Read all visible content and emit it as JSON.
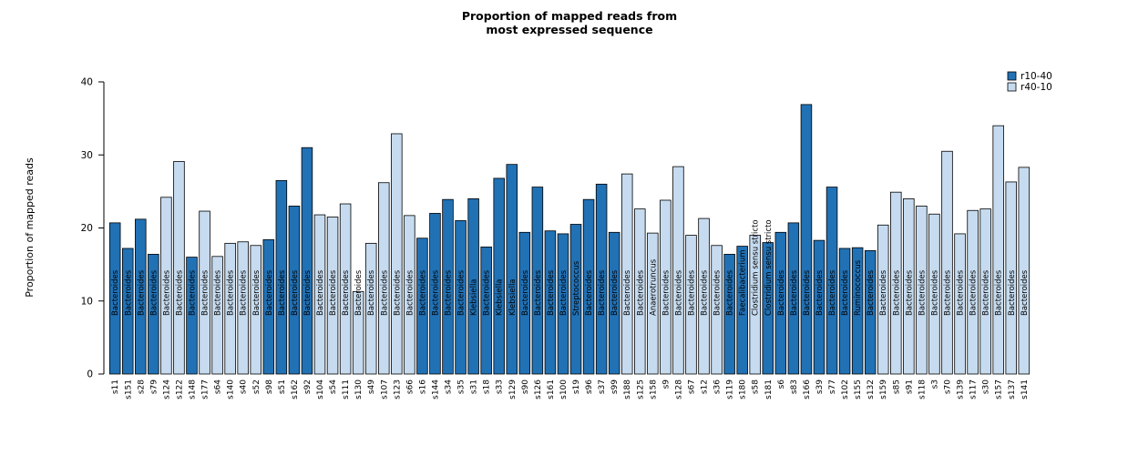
{
  "chart_data": {
    "type": "bar",
    "title_line1": "Proportion of mapped reads from",
    "title_line2": "most expressed sequence",
    "ylabel": "Proportion of mapped reads",
    "xlabel": "",
    "ylim": [
      0,
      40
    ],
    "yticks": [
      0,
      10,
      20,
      30,
      40
    ],
    "grid": false,
    "legend_position": "top-right",
    "bar_outline_color": "#000000",
    "legend": [
      {
        "label": "r10-40",
        "color": "#2171b5"
      },
      {
        "label": "r40-10",
        "color": "#c6dbef"
      }
    ],
    "bars": [
      {
        "sample": "s11",
        "value": 20.7,
        "group": "r10-40",
        "taxon": "Bacteroides"
      },
      {
        "sample": "s151",
        "value": 17.2,
        "group": "r10-40",
        "taxon": "Bacteroides"
      },
      {
        "sample": "s28",
        "value": 21.2,
        "group": "r10-40",
        "taxon": "Bacteroides"
      },
      {
        "sample": "s79",
        "value": 16.4,
        "group": "r10-40",
        "taxon": "Bacteroides"
      },
      {
        "sample": "s124",
        "value": 24.2,
        "group": "r40-10",
        "taxon": "Bacteroides"
      },
      {
        "sample": "s122",
        "value": 29.1,
        "group": "r40-10",
        "taxon": "Bacteroides"
      },
      {
        "sample": "s148",
        "value": 16.0,
        "group": "r10-40",
        "taxon": "Bacteroides"
      },
      {
        "sample": "s177",
        "value": 22.3,
        "group": "r40-10",
        "taxon": "Bacteroides"
      },
      {
        "sample": "s64",
        "value": 16.1,
        "group": "r40-10",
        "taxon": "Bacteroides"
      },
      {
        "sample": "s140",
        "value": 17.9,
        "group": "r40-10",
        "taxon": "Bacteroides"
      },
      {
        "sample": "s40",
        "value": 18.1,
        "group": "r40-10",
        "taxon": "Bacteroides"
      },
      {
        "sample": "s52",
        "value": 17.6,
        "group": "r40-10",
        "taxon": "Bacteroides"
      },
      {
        "sample": "s98",
        "value": 18.4,
        "group": "r10-40",
        "taxon": "Bacteroides"
      },
      {
        "sample": "s51",
        "value": 26.5,
        "group": "r10-40",
        "taxon": "Bacteroides"
      },
      {
        "sample": "s162",
        "value": 23.0,
        "group": "r10-40",
        "taxon": "Bacteroides"
      },
      {
        "sample": "s92",
        "value": 31.0,
        "group": "r10-40",
        "taxon": "Bacteroides"
      },
      {
        "sample": "s104",
        "value": 21.8,
        "group": "r40-10",
        "taxon": "Bacteroides"
      },
      {
        "sample": "s54",
        "value": 21.5,
        "group": "r40-10",
        "taxon": "Bacteroides"
      },
      {
        "sample": "s111",
        "value": 23.3,
        "group": "r40-10",
        "taxon": "Bacteroides"
      },
      {
        "sample": "s130",
        "value": 11.3,
        "group": "r40-10",
        "taxon": "Bacteroides"
      },
      {
        "sample": "s49",
        "value": 17.9,
        "group": "r40-10",
        "taxon": "Bacteroides"
      },
      {
        "sample": "s107",
        "value": 26.2,
        "group": "r40-10",
        "taxon": "Bacteroides"
      },
      {
        "sample": "s123",
        "value": 32.9,
        "group": "r40-10",
        "taxon": "Bacteroides"
      },
      {
        "sample": "s66",
        "value": 21.7,
        "group": "r40-10",
        "taxon": "Bacteroides"
      },
      {
        "sample": "s16",
        "value": 18.6,
        "group": "r10-40",
        "taxon": "Bacteroides"
      },
      {
        "sample": "s144",
        "value": 22.0,
        "group": "r10-40",
        "taxon": "Bacteroides"
      },
      {
        "sample": "s34",
        "value": 23.9,
        "group": "r10-40",
        "taxon": "Bacteroides"
      },
      {
        "sample": "s35",
        "value": 21.0,
        "group": "r10-40",
        "taxon": "Bacteroides"
      },
      {
        "sample": "s31",
        "value": 24.0,
        "group": "r10-40",
        "taxon": "Klebsiella"
      },
      {
        "sample": "s18",
        "value": 17.4,
        "group": "r10-40",
        "taxon": "Bacteroides"
      },
      {
        "sample": "s33",
        "value": 26.8,
        "group": "r10-40",
        "taxon": "Klebsiella"
      },
      {
        "sample": "s129",
        "value": 28.7,
        "group": "r10-40",
        "taxon": "Klebsiella"
      },
      {
        "sample": "s90",
        "value": 19.4,
        "group": "r10-40",
        "taxon": "Bacteroides"
      },
      {
        "sample": "s126",
        "value": 25.6,
        "group": "r10-40",
        "taxon": "Bacteroides"
      },
      {
        "sample": "s161",
        "value": 19.6,
        "group": "r10-40",
        "taxon": "Bacteroides"
      },
      {
        "sample": "s100",
        "value": 19.2,
        "group": "r10-40",
        "taxon": "Bacteroides"
      },
      {
        "sample": "s19",
        "value": 20.5,
        "group": "r10-40",
        "taxon": "Streptococcus"
      },
      {
        "sample": "s96",
        "value": 23.9,
        "group": "r10-40",
        "taxon": "Bacteroides"
      },
      {
        "sample": "s37",
        "value": 26.0,
        "group": "r10-40",
        "taxon": "Bacteroides"
      },
      {
        "sample": "s99",
        "value": 19.4,
        "group": "r10-40",
        "taxon": "Bacteroides"
      },
      {
        "sample": "s188",
        "value": 27.4,
        "group": "r40-10",
        "taxon": "Bacteroides"
      },
      {
        "sample": "s125",
        "value": 22.6,
        "group": "r40-10",
        "taxon": "Bacteroides"
      },
      {
        "sample": "s158",
        "value": 19.3,
        "group": "r40-10",
        "taxon": "Anaerotruncus"
      },
      {
        "sample": "s9",
        "value": 23.8,
        "group": "r40-10",
        "taxon": "Bacteroides"
      },
      {
        "sample": "s128",
        "value": 28.4,
        "group": "r40-10",
        "taxon": "Bacteroides"
      },
      {
        "sample": "s67",
        "value": 19.0,
        "group": "r40-10",
        "taxon": "Bacteroides"
      },
      {
        "sample": "s12",
        "value": 21.3,
        "group": "r40-10",
        "taxon": "Bacteroides"
      },
      {
        "sample": "s36",
        "value": 17.6,
        "group": "r40-10",
        "taxon": "Bacteroides"
      },
      {
        "sample": "s119",
        "value": 16.4,
        "group": "r10-40",
        "taxon": "Bacteroides"
      },
      {
        "sample": "s180",
        "value": 17.5,
        "group": "r10-40",
        "taxon": "Faecalibacterium"
      },
      {
        "sample": "s58",
        "value": 19.0,
        "group": "r40-10",
        "taxon": "Clostridium sensu stricto"
      },
      {
        "sample": "s181",
        "value": 18.0,
        "group": "r10-40",
        "taxon": "Clostridium sensu stricto"
      },
      {
        "sample": "s6",
        "value": 19.4,
        "group": "r10-40",
        "taxon": "Bacteroides"
      },
      {
        "sample": "s83",
        "value": 20.7,
        "group": "r10-40",
        "taxon": "Bacteroides"
      },
      {
        "sample": "s166",
        "value": 36.9,
        "group": "r10-40",
        "taxon": "Bacteroides"
      },
      {
        "sample": "s39",
        "value": 18.3,
        "group": "r10-40",
        "taxon": "Bacteroides"
      },
      {
        "sample": "s77",
        "value": 25.6,
        "group": "r10-40",
        "taxon": "Bacteroides"
      },
      {
        "sample": "s102",
        "value": 17.2,
        "group": "r10-40",
        "taxon": "Bacteroides"
      },
      {
        "sample": "s155",
        "value": 17.3,
        "group": "r10-40",
        "taxon": "Ruminococcus"
      },
      {
        "sample": "s132",
        "value": 16.9,
        "group": "r10-40",
        "taxon": "Bacteroides"
      },
      {
        "sample": "s159",
        "value": 20.4,
        "group": "r40-10",
        "taxon": "Bacteroides"
      },
      {
        "sample": "s85",
        "value": 24.9,
        "group": "r40-10",
        "taxon": "Bacteroides"
      },
      {
        "sample": "s91",
        "value": 24.0,
        "group": "r40-10",
        "taxon": "Bacteroides"
      },
      {
        "sample": "s118",
        "value": 23.0,
        "group": "r40-10",
        "taxon": "Bacteroides"
      },
      {
        "sample": "s3",
        "value": 21.9,
        "group": "r40-10",
        "taxon": "Bacteroides"
      },
      {
        "sample": "s70",
        "value": 30.5,
        "group": "r40-10",
        "taxon": "Bacteroides"
      },
      {
        "sample": "s139",
        "value": 19.2,
        "group": "r40-10",
        "taxon": "Bacteroides"
      },
      {
        "sample": "s117",
        "value": 22.4,
        "group": "r40-10",
        "taxon": "Bacteroides"
      },
      {
        "sample": "s30",
        "value": 22.6,
        "group": "r40-10",
        "taxon": "Bacteroides"
      },
      {
        "sample": "s157",
        "value": 34.0,
        "group": "r40-10",
        "taxon": "Bacteroides"
      },
      {
        "sample": "s137",
        "value": 26.3,
        "group": "r40-10",
        "taxon": "Bacteroides"
      },
      {
        "sample": "s141",
        "value": 28.3,
        "group": "r40-10",
        "taxon": "Bacteroides"
      }
    ]
  }
}
